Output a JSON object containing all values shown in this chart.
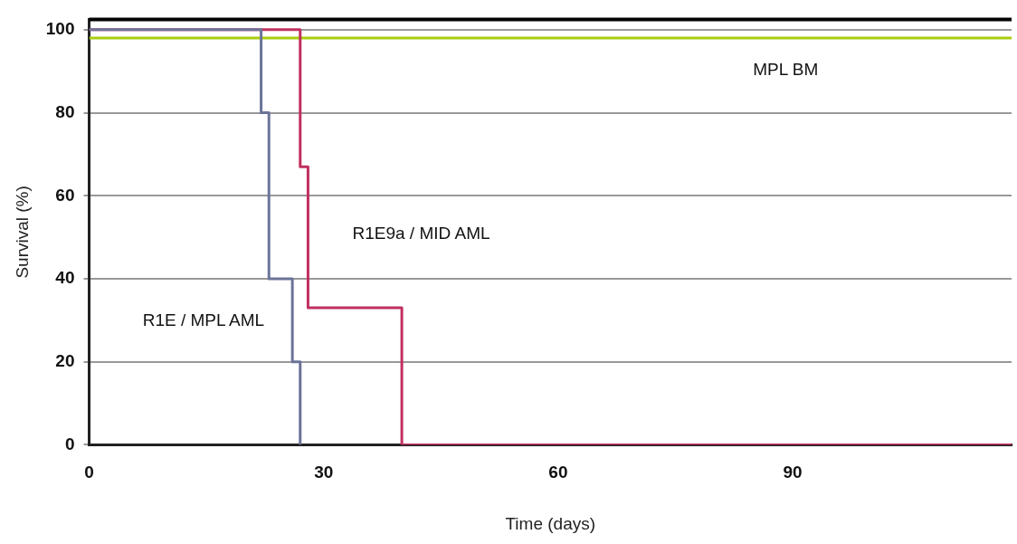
{
  "chart_data": {
    "type": "step",
    "xlabel": "Time (days)",
    "ylabel": "Survival (%)",
    "series": [
      {
        "color": "#6b7398",
        "x": [
          0,
          22,
          23,
          26,
          27
        ],
        "values": [
          100,
          80,
          40,
          20,
          0
        ]
      },
      {
        "color": "#c0305e",
        "x": [
          0,
          27,
          28,
          40,
          118
        ],
        "values": [
          100,
          67,
          33,
          0,
          0
        ]
      },
      {
        "color": "#a8cc10",
        "x": [
          0,
          118
        ],
        "values": [
          98,
          98
        ]
      }
    ],
    "annotations": [
      "R1E / MPL AML",
      "R1E9a / MID AML",
      "MPL BM"
    ],
    "xlim": [
      0,
      118
    ],
    "xticks": [
      0,
      30,
      60,
      90
    ],
    "ylim": [
      0,
      102.5
    ],
    "yticks": [
      0,
      20,
      40,
      60,
      80,
      100
    ],
    "grid": "y",
    "legend": false,
    "marker": "none",
    "line_style": "solid"
  }
}
